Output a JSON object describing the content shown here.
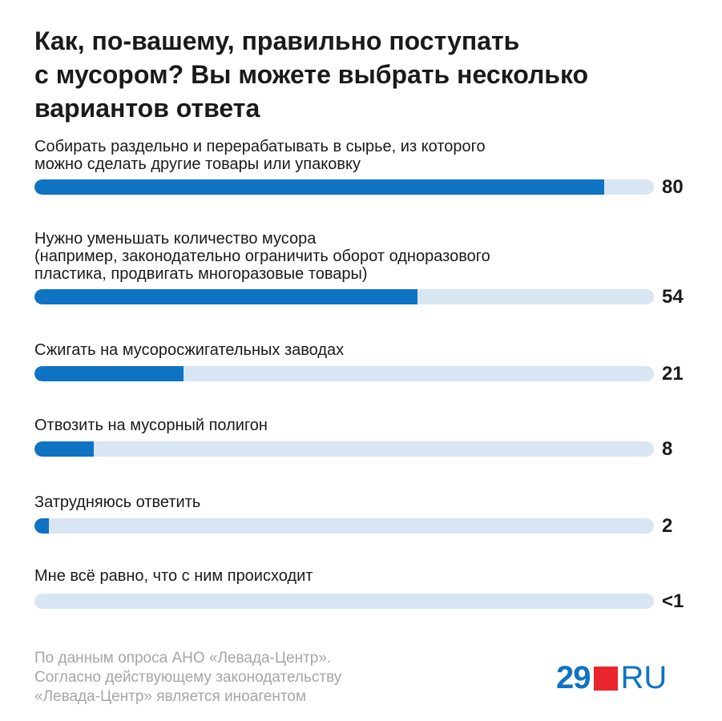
{
  "title": "Как, по-вашему, правильно поступать\nс мусором? Вы можете выбрать несколько\nвариантов ответа",
  "colors": {
    "bar_fill": "#0f73c3",
    "bar_track": "#d8e6f3",
    "logo_red": "#e8262c"
  },
  "chart_data": {
    "type": "bar",
    "orientation": "horizontal",
    "xlim": [
      0,
      100
    ],
    "categories": [
      "Собирать раздельно и перерабатывать в сырье, из которого\nможно сделать другие товары или упаковку",
      "Нужно уменьшать количество мусора\n(например, законодательно ограничить оборот одноразового\nпластика, продвигать многоразовые товары)",
      "Сжигать на мусоросжигательных заводах",
      "Отвозить на мусорный полигон",
      "Затрудняюсь ответить",
      "Мне всё равно, что с ним происходит"
    ],
    "values": [
      80,
      54,
      21,
      8,
      2,
      0
    ],
    "value_labels": [
      "80",
      "54",
      "21",
      "8",
      "2",
      "<1"
    ]
  },
  "source": "По данным опроса АНО «Левада-Центр».\nСогласно действующему законодательству\n«Левада-Центр» является иноагентом",
  "logo": {
    "number": "29",
    "suffix": "RU"
  }
}
